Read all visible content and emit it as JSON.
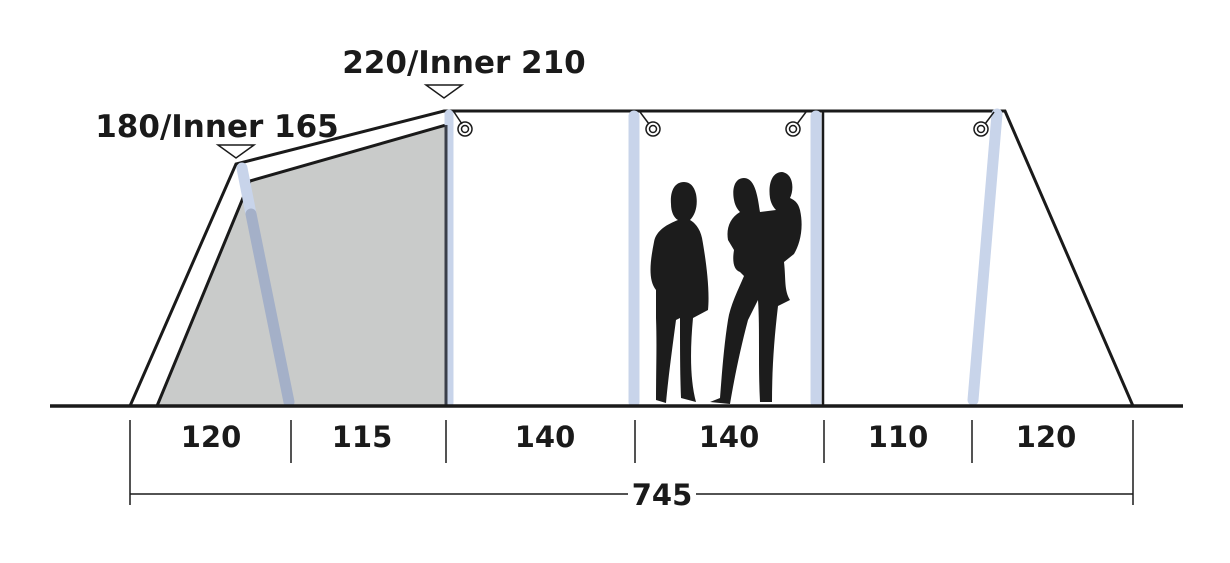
{
  "height_labels": {
    "front": "180/Inner 165",
    "main": "220/Inner 210"
  },
  "sections": [
    {
      "label": "120"
    },
    {
      "label": "115"
    },
    {
      "label": "140"
    },
    {
      "label": "140"
    },
    {
      "label": "110"
    },
    {
      "label": "120"
    }
  ],
  "total_length": "745",
  "colors": {
    "outline": "#1a1a1a",
    "inner_tent": "#c9cbca",
    "air_pole": "#c8d4ea",
    "air_pole_over_inner": "#a4b0c8",
    "silhouette": "#1c1c1c"
  }
}
